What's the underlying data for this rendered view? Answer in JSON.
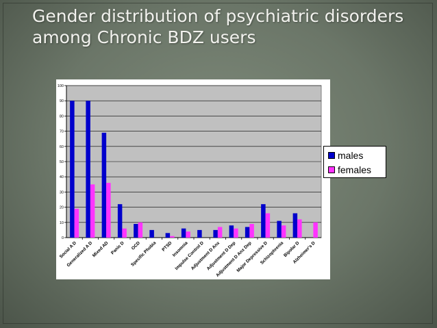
{
  "slide": {
    "title_line1": "Gender distribution of psychiatric disorders",
    "title_line2": "among Chronic BDZ users"
  },
  "chart_data": {
    "type": "bar",
    "categories": [
      "Social A D",
      "Generalized A D",
      "Mixed AD",
      "Panic D",
      "OCD",
      "Specific Phobia",
      "PTSD",
      "Insomnia",
      "Impulse Control D",
      "Adjustment D Anx",
      "Adjustment D Dep",
      "Adjustment D Anx Dep",
      "Major Depressive D",
      "Schizophrenia",
      "Bipolar D",
      "Alzheimer's D"
    ],
    "series": [
      {
        "name": "males",
        "color": "#0000cc",
        "values": [
          90,
          90,
          69,
          22,
          9,
          5,
          3,
          6,
          5,
          5,
          8,
          7,
          22,
          11,
          16,
          0
        ]
      },
      {
        "name": "females",
        "color": "#ff33ff",
        "values": [
          19,
          35,
          36,
          6,
          10,
          0,
          1,
          4,
          0,
          7,
          6,
          9,
          16,
          8,
          12,
          10
        ]
      }
    ],
    "ylim": [
      0,
      100
    ],
    "yticks": [
      "0",
      "10",
      "20",
      "30",
      "40",
      "50",
      "60",
      "70",
      "80",
      "90",
      "100"
    ],
    "grid": true,
    "legend_position": "right",
    "plot_background": "#c0c0c0"
  }
}
